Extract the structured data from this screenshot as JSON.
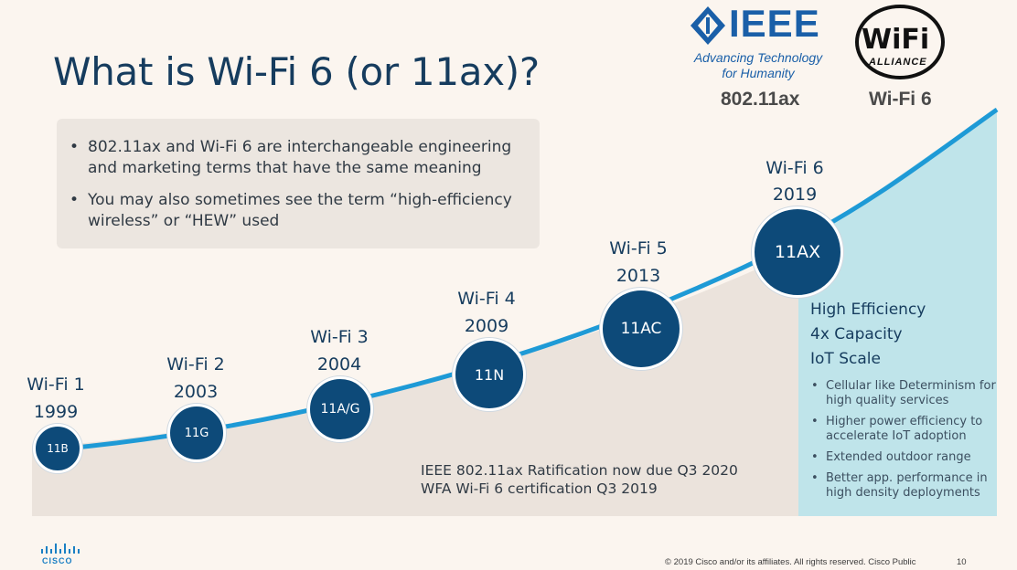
{
  "title": "What is Wi-Fi 6 (or 11ax)?",
  "info_bullets": [
    "802.11ax and Wi-Fi 6 are interchangeable engineering and marketing terms that have the same meaning",
    "You may also sometimes see the term “high-efficiency wireless” or “HEW” used"
  ],
  "logos": {
    "ieee_wordmark": "IEEE",
    "ieee_tagline_1": "Advancing Technology",
    "ieee_tagline_2": "for Humanity",
    "ieee_caption": "802.11ax",
    "wifi_wordmark": "WiFi",
    "wifi_alliance": "ALLIANCE",
    "wifi_caption": "Wi-Fi 6"
  },
  "generations": [
    {
      "name": "Wi-Fi 1",
      "year": "1999",
      "code": "11B"
    },
    {
      "name": "Wi-Fi 2",
      "year": "2003",
      "code": "11G"
    },
    {
      "name": "Wi-Fi 3",
      "year": "2004",
      "code": "11A/G"
    },
    {
      "name": "Wi-Fi 4",
      "year": "2009",
      "code": "11N"
    },
    {
      "name": "Wi-Fi 5",
      "year": "2013",
      "code": "11AC"
    },
    {
      "name": "Wi-Fi 6",
      "year": "2019",
      "code": "11AX"
    }
  ],
  "wifi6_features": {
    "headlines": [
      "High Efficiency",
      "4x Capacity",
      "IoT Scale"
    ],
    "bullets": [
      "Cellular like Determinism for high quality services",
      "Higher power efficiency to accelerate IoT adoption",
      "Extended outdoor range",
      "Better app. performance in high density deployments"
    ]
  },
  "ratification": {
    "line1": "IEEE 802.11ax Ratification now due Q3 2020",
    "line2": "WFA Wi-Fi 6 certification Q3 2019"
  },
  "footer": {
    "copyright": "© 2019  Cisco and/or its affiliates. All rights reserved.   Cisco Public",
    "page_number": "10",
    "brand": "CISCO"
  },
  "colors": {
    "curve": "#1e9ad6",
    "node_fill": "#0d4a79",
    "panel_fill": "#bfe4ea",
    "area_fill": "#ebe3dc"
  }
}
